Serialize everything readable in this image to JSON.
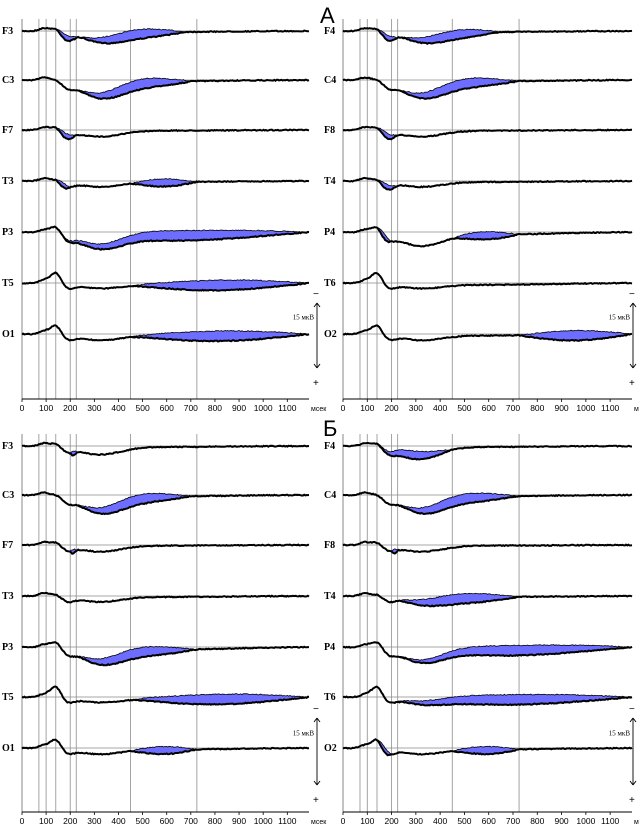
{
  "chart_data": {
    "type": "line",
    "colors": {
      "shading": "#6d6dff",
      "trace": "#000000",
      "grid": "#9a9a9a"
    },
    "x_axis": {
      "ticks": [
        "0",
        "100",
        "200",
        "300",
        "400",
        "500",
        "600",
        "700",
        "800",
        "900",
        "1000",
        "1100"
      ],
      "unit": "мсек",
      "range": [
        0,
        1200
      ]
    },
    "marker_latencies": [
      70,
      100,
      140,
      200,
      225,
      450,
      725
    ],
    "calibration": {
      "label": "15 мкВ",
      "minus": "−",
      "plus": "+"
    },
    "series_note": "thick line and thin line per channel; blue areas mark significant differences",
    "panels": [
      {
        "id": "A",
        "label": "А",
        "left": [
          {
            "ch": "F3",
            "shade": [
              [
                140,
                230
              ],
              [
                240,
                680
              ]
            ]
          },
          {
            "ch": "C3",
            "shade": [
              [
                230,
                710
              ]
            ]
          },
          {
            "ch": "F7",
            "shade": [
              [
                140,
                225
              ]
            ]
          },
          {
            "ch": "T3",
            "shade": [
              [
                140,
                200
              ],
              [
                450,
                725
              ]
            ]
          },
          {
            "ch": "P3",
            "shade": [
              [
                140,
                1190
              ]
            ]
          },
          {
            "ch": "T5",
            "shade": [
              [
                450,
                1190
              ]
            ]
          },
          {
            "ch": "O1",
            "shade": [
              [
                450,
                1190
              ]
            ]
          }
        ],
        "right": [
          {
            "ch": "F4",
            "shade": [
              [
                140,
                225
              ],
              [
                240,
                650
              ]
            ]
          },
          {
            "ch": "C4",
            "shade": [
              [
                230,
                725
              ]
            ]
          },
          {
            "ch": "F8",
            "shade": [
              [
                140,
                225
              ]
            ]
          },
          {
            "ch": "T4",
            "shade": [
              [
                140,
                220
              ]
            ]
          },
          {
            "ch": "P4",
            "shade": [
              [
                140,
                200
              ],
              [
                450,
                725
              ]
            ]
          },
          {
            "ch": "T6",
            "shade": []
          },
          {
            "ch": "O2",
            "shade": [
              [
                725,
                1190
              ]
            ]
          }
        ]
      },
      {
        "id": "B",
        "label": "Б",
        "left": [
          {
            "ch": "F3",
            "shade": [
              [
                200,
                230
              ]
            ]
          },
          {
            "ch": "C3",
            "shade": [
              [
                225,
                700
              ]
            ]
          },
          {
            "ch": "F7",
            "shade": [
              [
                200,
                225
              ]
            ]
          },
          {
            "ch": "T3",
            "shade": []
          },
          {
            "ch": "P3",
            "shade": [
              [
                225,
                725
              ]
            ]
          },
          {
            "ch": "T5",
            "shade": [
              [
                450,
                1190
              ]
            ]
          },
          {
            "ch": "O1",
            "shade": [
              [
                450,
                725
              ]
            ]
          }
        ],
        "right": [
          {
            "ch": "F4",
            "shade": [
              [
                140,
                450
              ]
            ]
          },
          {
            "ch": "C4",
            "shade": [
              [
                225,
                725
              ]
            ]
          },
          {
            "ch": "F8",
            "shade": [
              [
                200,
                225
              ]
            ]
          },
          {
            "ch": "T4",
            "shade": [
              [
                225,
                725
              ]
            ]
          },
          {
            "ch": "P4",
            "shade": [
              [
                225,
                1190
              ]
            ]
          },
          {
            "ch": "T6",
            "shade": [
              [
                200,
                1190
              ]
            ]
          },
          {
            "ch": "O2",
            "shade": [
              [
                140,
                200
              ],
              [
                450,
                725
              ]
            ]
          }
        ]
      }
    ]
  }
}
